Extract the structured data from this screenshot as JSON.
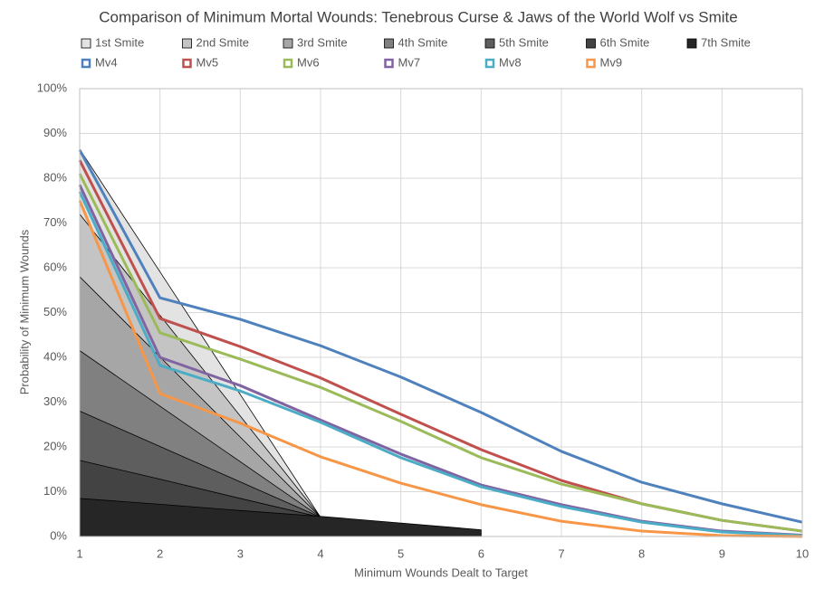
{
  "chart_data": {
    "type": "line",
    "title": "Comparison of Minimum Mortal Wounds: Tenebrous Curse & Jaws of the World Wolf vs Smite",
    "x_label": "Minimum Wounds Dealt to Target",
    "y_label": "Probability of Minimum Wounds",
    "x": [
      1,
      2,
      3,
      4,
      5,
      6,
      7,
      8,
      9,
      10
    ],
    "xlim": [
      1,
      10
    ],
    "xticks": [
      1,
      2,
      3,
      4,
      5,
      6,
      7,
      8,
      9,
      10
    ],
    "ylim": [
      0,
      100
    ],
    "yticks": [
      {
        "value": 0,
        "label": "0%"
      },
      {
        "value": 10,
        "label": "10%"
      },
      {
        "value": 20,
        "label": "20%"
      },
      {
        "value": 30,
        "label": "30%"
      },
      {
        "value": 40,
        "label": "40%"
      },
      {
        "value": 50,
        "label": "50%"
      },
      {
        "value": 60,
        "label": "60%"
      },
      {
        "value": 70,
        "label": "70%"
      },
      {
        "value": 80,
        "label": "80%"
      },
      {
        "value": 90,
        "label": "90%"
      },
      {
        "value": 100,
        "label": "100%"
      }
    ],
    "grid": true,
    "series": [
      {
        "name": "1st Smite",
        "type": "area",
        "color": "#e3e3e3",
        "values": [
          86.5,
          59.1,
          31.7,
          4.3,
          null,
          null,
          null,
          null,
          null,
          null
        ]
      },
      {
        "name": "2nd Smite",
        "type": "area",
        "color": "#c4c4c4",
        "values": [
          72,
          49.4,
          26.9,
          4.3,
          null,
          null,
          null,
          null,
          null,
          null
        ]
      },
      {
        "name": "3rd Smite",
        "type": "area",
        "color": "#a6a6a6",
        "values": [
          58,
          40.1,
          22.2,
          4.3,
          null,
          null,
          null,
          null,
          null,
          null
        ]
      },
      {
        "name": "4th Smite",
        "type": "area",
        "color": "#808080",
        "values": [
          41.5,
          29.1,
          16.7,
          4.3,
          null,
          null,
          null,
          null,
          null,
          null
        ]
      },
      {
        "name": "5th Smite",
        "type": "area",
        "color": "#5e5e5e",
        "values": [
          28,
          20.1,
          12.2,
          4.3,
          null,
          null,
          null,
          null,
          null,
          null
        ]
      },
      {
        "name": "6th Smite",
        "type": "area",
        "color": "#434343",
        "values": [
          17,
          12.8,
          8.5,
          4.3,
          null,
          null,
          null,
          null,
          null,
          null
        ]
      },
      {
        "name": "7th Smite",
        "type": "area",
        "color": "#262626",
        "values": [
          8.5,
          7.2,
          5.8,
          4.5,
          3,
          1.5,
          null,
          null,
          null,
          null
        ]
      },
      {
        "name": "Mv4",
        "type": "line",
        "color": "#4f81bd",
        "values": [
          86.3,
          53.3,
          48.5,
          42.6,
          35.6,
          27.7,
          19,
          12.1,
          7.3,
          3.2
        ]
      },
      {
        "name": "Mv5",
        "type": "line",
        "color": "#c0504d",
        "values": [
          84,
          48.7,
          42.4,
          35.4,
          27.3,
          19.4,
          12.5,
          7.3,
          3.6,
          1.2
        ]
      },
      {
        "name": "Mv6",
        "type": "line",
        "color": "#9bbb59",
        "values": [
          81,
          45.5,
          39.6,
          33.3,
          25.7,
          17.6,
          11.7,
          7.3,
          3.6,
          1.2
        ]
      },
      {
        "name": "Mv7",
        "type": "line",
        "color": "#8064a2",
        "values": [
          78.5,
          40,
          33.7,
          26,
          18.4,
          11.5,
          7.1,
          3.4,
          1.2,
          0.3
        ]
      },
      {
        "name": "Mv8",
        "type": "line",
        "color": "#4bacc6",
        "values": [
          77,
          38.2,
          32.5,
          25.5,
          17.6,
          11.1,
          6.7,
          3.2,
          1,
          0.2
        ]
      },
      {
        "name": "Mv9",
        "type": "line",
        "color": "#f79646",
        "values": [
          75,
          31.9,
          25.3,
          17.8,
          11.9,
          7.1,
          3.4,
          1.2,
          0.2,
          0
        ]
      }
    ]
  }
}
